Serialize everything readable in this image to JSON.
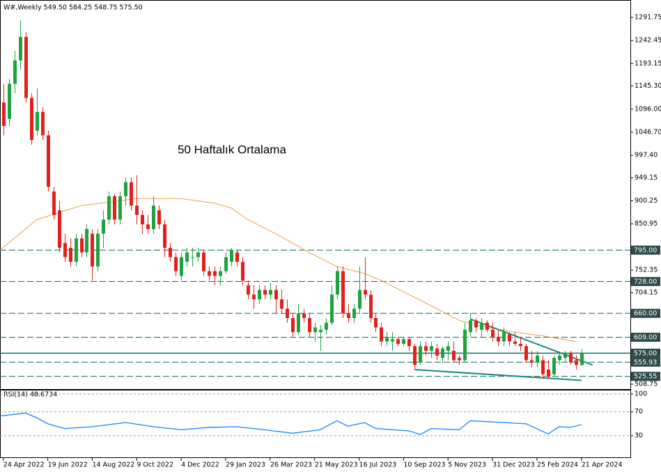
{
  "chart_data": [
    {
      "type": "candlestick",
      "title": "W#,Weekly  549.50 584.25 548.75 575.50",
      "annotation": "50 Haftalık Ortalama",
      "annotation_color": "#f08a1a",
      "up_color": "#1fa33f",
      "down_color": "#e3211c",
      "open": [
        1110,
        1075,
        1150,
        1200,
        1250,
        1120,
        1050,
        1090,
        1040,
        920,
        880,
        810,
        800,
        770,
        820,
        790,
        830,
        760,
        830,
        860,
        910,
        860,
        910,
        940,
        890,
        870,
        850,
        840,
        880,
        850,
        800,
        780,
        740,
        770,
        780,
        780,
        790,
        750,
        750,
        740,
        750,
        770,
        790,
        770,
        720,
        700,
        690,
        710,
        700,
        710,
        690,
        670,
        650,
        620,
        660,
        650,
        620,
        620,
        625,
        640,
        700,
        750,
        660,
        650,
        670,
        710,
        700,
        650,
        630,
        600,
        600,
        605,
        595,
        605,
        590,
        555,
        590,
        580,
        585,
        565,
        580,
        580,
        565,
        560,
        620,
        645,
        625,
        640,
        625,
        610,
        600,
        615,
        600,
        595,
        590,
        560,
        555,
        560,
        540,
        530,
        560,
        565,
        575,
        560,
        549.5
      ],
      "high": [
        1150,
        1160,
        1220,
        1285,
        1260,
        1130,
        1140,
        1100,
        1050,
        930,
        900,
        830,
        820,
        830,
        830,
        850,
        840,
        840,
        880,
        920,
        915,
        920,
        950,
        950,
        955,
        880,
        870,
        910,
        890,
        860,
        810,
        790,
        790,
        800,
        800,
        800,
        795,
        760,
        760,
        760,
        790,
        800,
        795,
        780,
        730,
        720,
        720,
        720,
        725,
        720,
        710,
        690,
        660,
        680,
        670,
        660,
        640,
        635,
        650,
        720,
        760,
        760,
        680,
        680,
        760,
        780,
        710,
        660,
        640,
        620,
        620,
        610,
        610,
        610,
        595,
        600,
        600,
        600,
        595,
        590,
        600,
        600,
        570,
        640,
        660,
        650,
        650,
        645,
        640,
        625,
        630,
        620,
        620,
        610,
        595,
        580,
        580,
        570,
        560,
        570,
        575,
        580,
        580,
        570,
        584.25
      ],
      "low": [
        1040,
        1060,
        1130,
        1180,
        1110,
        1020,
        1040,
        1030,
        920,
        860,
        790,
        770,
        760,
        760,
        780,
        780,
        730,
        750,
        800,
        850,
        850,
        850,
        890,
        880,
        850,
        830,
        830,
        830,
        840,
        780,
        770,
        740,
        730,
        760,
        760,
        770,
        740,
        730,
        720,
        720,
        745,
        760,
        760,
        720,
        690,
        670,
        680,
        690,
        690,
        660,
        660,
        640,
        610,
        615,
        640,
        610,
        600,
        580,
        615,
        635,
        690,
        650,
        640,
        640,
        660,
        690,
        640,
        620,
        590,
        590,
        580,
        590,
        590,
        580,
        540,
        550,
        570,
        565,
        560,
        555,
        560,
        555,
        550,
        555,
        610,
        620,
        610,
        620,
        600,
        590,
        590,
        590,
        590,
        580,
        555,
        545,
        545,
        520,
        520,
        525,
        550,
        555,
        550,
        540,
        548.75
      ],
      "close": [
        1060,
        1150,
        1200,
        1250,
        1120,
        1030,
        1090,
        1040,
        930,
        870,
        800,
        780,
        770,
        820,
        790,
        840,
        760,
        830,
        860,
        910,
        860,
        910,
        940,
        890,
        870,
        850,
        840,
        890,
        850,
        800,
        780,
        750,
        780,
        790,
        780,
        790,
        750,
        740,
        740,
        750,
        780,
        795,
        770,
        730,
        700,
        690,
        710,
        700,
        710,
        690,
        670,
        650,
        620,
        660,
        650,
        620,
        630,
        625,
        640,
        700,
        750,
        660,
        650,
        670,
        710,
        700,
        650,
        630,
        600,
        610,
        605,
        595,
        605,
        590,
        550,
        590,
        580,
        590,
        570,
        585,
        590,
        560,
        560,
        625,
        645,
        630,
        640,
        625,
        610,
        600,
        620,
        600,
        595,
        590,
        560,
        555,
        570,
        530,
        525,
        565,
        570,
        575,
        555,
        550,
        575.5
      ],
      "xlim": [
        -0.6,
        112.8
      ],
      "xticks": [
        {
          "value": 0,
          "label": "24 Apr 2022"
        },
        {
          "value": 8,
          "label": "19 Jun 2022"
        },
        {
          "value": 16,
          "label": "14 Aug 2022"
        },
        {
          "value": 24,
          "label": "9 Oct 2022"
        },
        {
          "value": 32,
          "label": "4 Dec 2022"
        },
        {
          "value": 40,
          "label": "29 Jan 2023"
        },
        {
          "value": 48,
          "label": "26 Mar 2023"
        },
        {
          "value": 56,
          "label": "21 May 2023"
        },
        {
          "value": 64,
          "label": "16 Jul 2023"
        },
        {
          "value": 72,
          "label": "10 Sep 2023"
        },
        {
          "value": 80,
          "label": "5 Nov 2023"
        },
        {
          "value": 88,
          "label": "31 Dec 2023"
        },
        {
          "value": 96,
          "label": "25 Feb 2024"
        },
        {
          "value": 104,
          "label": "21 Apr 2024"
        }
      ],
      "ylim": [
        496.9,
        1327.4
      ],
      "yticks": [
        1291.75,
        1242.45,
        1193.15,
        {
          "value": 1145.3,
          "label": "1145.30"
        },
        {
          "value": 1096,
          "label": "1096.00"
        },
        {
          "value": 1046.7,
          "label": "1046.70"
        },
        {
          "value": 997.4,
          "label": "997.40"
        },
        949.15,
        900.25,
        850.95,
        752.35,
        704.15,
        508.75
      ],
      "level_color": "#237a72",
      "levels": [
        {
          "value": 795,
          "label": "795.00",
          "style": "dashed"
        },
        {
          "value": 728,
          "label": "728.00",
          "style": "dashed"
        },
        {
          "value": 660,
          "label": "660.00",
          "style": "dashed"
        },
        {
          "value": 609,
          "label": "609.00",
          "style": "dashed"
        },
        {
          "value": 575,
          "label": "575.00",
          "style": "solid"
        },
        {
          "value": 555.93,
          "label": "555.93",
          "style": "dashed"
        },
        {
          "value": 525.55,
          "label": "525.55",
          "style": "dashed"
        }
      ],
      "ma": {
        "color": "#f0a040",
        "x": [
          -0.6,
          6,
          14,
          24,
          32,
          38,
          41,
          44,
          49,
          55,
          60,
          65,
          68,
          73,
          78,
          82,
          87,
          92,
          97,
          103
        ],
        "values": [
          795,
          860,
          890,
          905,
          905,
          895,
          885,
          860,
          830,
          790,
          760,
          745,
          730,
          700,
          670,
          645,
          630,
          620,
          612,
          600
        ]
      },
      "trendlines": [
        {
          "color": "#1a8a7a",
          "x": [
            84,
            106
          ],
          "values": [
            648,
            550
          ]
        },
        {
          "color": "#1a8a7a",
          "x": [
            74,
            104
          ],
          "values": [
            540,
            517
          ]
        }
      ]
    },
    {
      "type": "line",
      "title": "RSI(14) 48.6734",
      "color": "#1e90ff",
      "x": [
        -0.6,
        4,
        6,
        8,
        11,
        16,
        22,
        27,
        32,
        37,
        42,
        47,
        52,
        57,
        60,
        62,
        65,
        67,
        73,
        75,
        77,
        82,
        84,
        90,
        94,
        98,
        100,
        102,
        104
      ],
      "values": [
        63,
        68,
        60,
        50,
        42,
        45,
        52,
        45,
        40,
        44,
        45,
        40,
        34,
        40,
        55,
        46,
        52,
        42,
        38,
        32,
        42,
        40,
        55,
        52,
        50,
        33,
        45,
        44,
        48.6734
      ],
      "ylim": [
        -6.2,
        105.8
      ],
      "yticks": [
        100,
        70,
        30
      ],
      "grid": true
    }
  ]
}
